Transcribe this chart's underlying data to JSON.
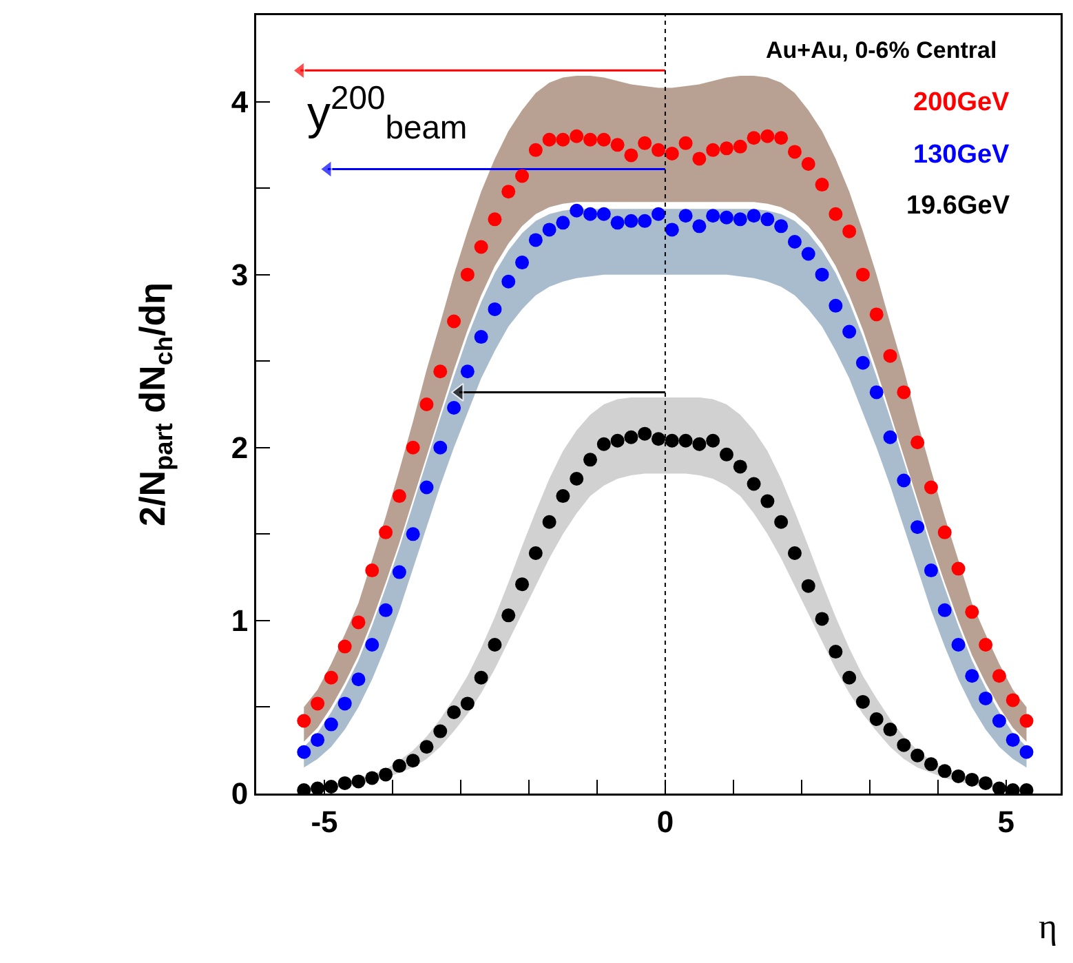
{
  "chart_data": {
    "type": "scatter",
    "xlabel": "η",
    "ylabel": "2/N$_{part}$ dN$_{ch}$/dη",
    "legend_title": "Au+Au, 0-6% Central",
    "legend": "top right",
    "marker": "circle",
    "grid": false,
    "xlim": [
      -6,
      5.8
    ],
    "ylim": [
      0,
      4.5
    ],
    "xticks": [
      -5,
      {
        "value": -4,
        "label": null
      },
      {
        "value": -3,
        "label": null
      },
      {
        "value": -2,
        "label": null
      },
      {
        "value": -1,
        "label": null
      },
      0,
      {
        "value": 1,
        "label": null
      },
      {
        "value": 2,
        "label": null
      },
      {
        "value": 3,
        "label": null
      },
      {
        "value": 4,
        "label": null
      },
      5
    ],
    "yticks": [
      0,
      {
        "value": 0.5,
        "label": null
      },
      1,
      {
        "value": 1.5,
        "label": null
      },
      2,
      {
        "value": 2.5,
        "label": null
      },
      3,
      {
        "value": 3.5,
        "label": null
      },
      4
    ],
    "x": [
      -5.3,
      -5.1,
      -4.9,
      -4.7,
      -4.5,
      -4.3,
      -4.1,
      -3.9,
      -3.7,
      -3.5,
      -3.3,
      -3.1,
      -2.9,
      -2.7,
      -2.5,
      -2.3,
      -2.1,
      -1.9,
      -1.7,
      -1.5,
      -1.3,
      -1.1,
      -0.9,
      -0.7,
      -0.5,
      -0.3,
      -0.1,
      0.1,
      0.3,
      0.5,
      0.7,
      0.9,
      1.1,
      1.3,
      1.5,
      1.7,
      1.9,
      2.1,
      2.3,
      2.5,
      2.7,
      2.9,
      3.1,
      3.3,
      3.5,
      3.7,
      3.9,
      4.1,
      4.3,
      4.5,
      4.7,
      4.9,
      5.1,
      5.3
    ],
    "series": [
      {
        "name": "200GeV",
        "color": "#ff0000",
        "values": [
          0.42,
          0.52,
          0.67,
          0.85,
          0.99,
          1.29,
          1.51,
          1.72,
          2.0,
          2.25,
          2.44,
          2.73,
          3.0,
          3.16,
          3.32,
          3.48,
          3.57,
          3.72,
          3.78,
          3.78,
          3.8,
          3.78,
          3.78,
          3.75,
          3.69,
          3.76,
          3.72,
          3.7,
          3.76,
          3.67,
          3.72,
          3.73,
          3.74,
          3.79,
          3.8,
          3.79,
          3.71,
          3.64,
          3.52,
          3.35,
          3.25,
          3.0,
          2.77,
          2.53,
          2.32,
          2.03,
          1.77,
          1.51,
          1.3,
          1.05,
          0.86,
          0.68,
          0.54,
          0.42
        ],
        "upper": [
          0.5,
          0.6,
          0.75,
          0.92,
          1.1,
          1.35,
          1.6,
          1.87,
          2.15,
          2.45,
          2.72,
          3.0,
          3.25,
          3.48,
          3.67,
          3.83,
          3.95,
          4.05,
          4.11,
          4.14,
          4.15,
          4.15,
          4.14,
          4.12,
          4.1,
          4.09,
          4.08,
          4.08,
          4.09,
          4.1,
          4.12,
          4.14,
          4.15,
          4.15,
          4.14,
          4.11,
          4.05,
          3.95,
          3.83,
          3.67,
          3.48,
          3.25,
          3.0,
          2.72,
          2.45,
          2.15,
          1.87,
          1.6,
          1.35,
          1.1,
          0.92,
          0.75,
          0.6,
          0.5
        ],
        "lower": [
          0.3,
          0.38,
          0.5,
          0.64,
          0.8,
          1.0,
          1.22,
          1.45,
          1.7,
          1.95,
          2.2,
          2.45,
          2.68,
          2.88,
          3.05,
          3.18,
          3.28,
          3.35,
          3.39,
          3.41,
          3.42,
          3.42,
          3.42,
          3.42,
          3.42,
          3.42,
          3.42,
          3.42,
          3.42,
          3.42,
          3.42,
          3.42,
          3.42,
          3.42,
          3.41,
          3.39,
          3.35,
          3.28,
          3.18,
          3.05,
          2.88,
          2.68,
          2.45,
          2.2,
          1.95,
          1.7,
          1.45,
          1.22,
          1.0,
          0.8,
          0.64,
          0.5,
          0.38,
          0.3
        ]
      },
      {
        "name": "130GeV",
        "color": "#0000ff",
        "values": [
          0.24,
          0.31,
          0.4,
          0.52,
          0.66,
          0.86,
          1.06,
          1.28,
          1.5,
          1.77,
          2.0,
          2.23,
          2.44,
          2.64,
          2.8,
          2.96,
          3.07,
          3.2,
          3.26,
          3.3,
          3.37,
          3.35,
          3.35,
          3.3,
          3.31,
          3.31,
          3.35,
          3.26,
          3.34,
          3.28,
          3.34,
          3.33,
          3.32,
          3.34,
          3.32,
          3.28,
          3.19,
          3.12,
          3.0,
          2.82,
          2.67,
          2.49,
          2.32,
          2.06,
          1.81,
          1.54,
          1.29,
          1.06,
          0.86,
          0.68,
          0.55,
          0.42,
          0.31,
          0.24
        ],
        "upper": [
          0.27,
          0.35,
          0.47,
          0.61,
          0.77,
          0.97,
          1.19,
          1.42,
          1.67,
          1.92,
          2.17,
          2.41,
          2.64,
          2.84,
          3.01,
          3.14,
          3.24,
          3.31,
          3.35,
          3.37,
          3.38,
          3.38,
          3.38,
          3.38,
          3.38,
          3.38,
          3.38,
          3.38,
          3.38,
          3.38,
          3.38,
          3.38,
          3.38,
          3.38,
          3.37,
          3.35,
          3.31,
          3.24,
          3.14,
          3.01,
          2.84,
          2.64,
          2.41,
          2.17,
          1.92,
          1.67,
          1.42,
          1.19,
          0.97,
          0.77,
          0.61,
          0.47,
          0.35,
          0.27
        ],
        "lower": [
          0.15,
          0.2,
          0.27,
          0.37,
          0.5,
          0.66,
          0.85,
          1.06,
          1.3,
          1.54,
          1.78,
          2.0,
          2.2,
          2.4,
          2.56,
          2.7,
          2.8,
          2.88,
          2.93,
          2.96,
          2.98,
          2.99,
          3.0,
          3.0,
          3.0,
          3.0,
          3.0,
          3.0,
          3.0,
          3.0,
          3.0,
          3.0,
          2.99,
          2.98,
          2.96,
          2.93,
          2.88,
          2.8,
          2.7,
          2.56,
          2.4,
          2.2,
          2.0,
          1.78,
          1.54,
          1.3,
          1.06,
          0.85,
          0.66,
          0.5,
          0.37,
          0.27,
          0.2,
          0.15
        ]
      },
      {
        "name": "19.6GeV",
        "color": "#000000",
        "values": [
          0.02,
          0.03,
          0.04,
          0.06,
          0.07,
          0.09,
          0.11,
          0.16,
          0.19,
          0.27,
          0.36,
          0.47,
          0.52,
          0.67,
          0.86,
          1.03,
          1.21,
          1.39,
          1.57,
          1.72,
          1.82,
          1.93,
          2.02,
          2.04,
          2.06,
          2.08,
          2.05,
          2.04,
          2.04,
          2.02,
          2.04,
          1.96,
          1.89,
          1.79,
          1.69,
          1.57,
          1.39,
          1.2,
          1.01,
          0.82,
          0.67,
          0.53,
          0.43,
          0.37,
          0.28,
          0.22,
          0.17,
          0.13,
          0.1,
          0.08,
          0.06,
          0.03,
          0.02,
          0.02
        ],
        "upper": [
          0.03,
          0.04,
          0.05,
          0.07,
          0.09,
          0.11,
          0.14,
          0.19,
          0.25,
          0.33,
          0.43,
          0.55,
          0.68,
          0.84,
          1.02,
          1.22,
          1.43,
          1.63,
          1.82,
          1.98,
          2.1,
          2.19,
          2.25,
          2.28,
          2.29,
          2.29,
          2.29,
          2.29,
          2.29,
          2.29,
          2.28,
          2.25,
          2.19,
          2.1,
          1.98,
          1.82,
          1.63,
          1.43,
          1.22,
          1.02,
          0.84,
          0.68,
          0.55,
          0.43,
          0.33,
          0.25,
          0.19,
          0.14,
          0.11,
          0.09,
          0.07,
          0.05,
          0.04,
          0.03
        ],
        "lower": [
          0.01,
          0.02,
          0.03,
          0.04,
          0.05,
          0.07,
          0.09,
          0.12,
          0.15,
          0.2,
          0.27,
          0.36,
          0.46,
          0.58,
          0.72,
          0.88,
          1.04,
          1.2,
          1.36,
          1.5,
          1.62,
          1.72,
          1.78,
          1.82,
          1.84,
          1.85,
          1.85,
          1.85,
          1.85,
          1.84,
          1.82,
          1.78,
          1.72,
          1.62,
          1.5,
          1.36,
          1.2,
          1.04,
          0.88,
          0.72,
          0.58,
          0.46,
          0.36,
          0.27,
          0.2,
          0.15,
          0.12,
          0.09,
          0.07,
          0.05,
          0.04,
          0.03,
          0.02,
          0.01
        ]
      },
      {
        "type": "line",
        "color": "#ff0000",
        "x": [
          0,
          -5.35
        ],
        "values": [
          4.18,
          4.18
        ],
        "marker": "triangle"
      },
      {
        "type": "line",
        "color": "#0000ff",
        "x": [
          0,
          -4.95
        ],
        "values": [
          3.61,
          3.61
        ],
        "marker": "triangle"
      },
      {
        "type": "line",
        "color": "#000000",
        "x": [
          0,
          -3.02
        ],
        "values": [
          2.32,
          2.32
        ],
        "marker": "triangle"
      }
    ],
    "ref_lines": [
      {
        "axis": "x",
        "value": 0,
        "label": null,
        "color": "#000000",
        "line_style": "dotted"
      }
    ],
    "annotations": [
      "y$^{200}$$_{beam}$"
    ]
  }
}
